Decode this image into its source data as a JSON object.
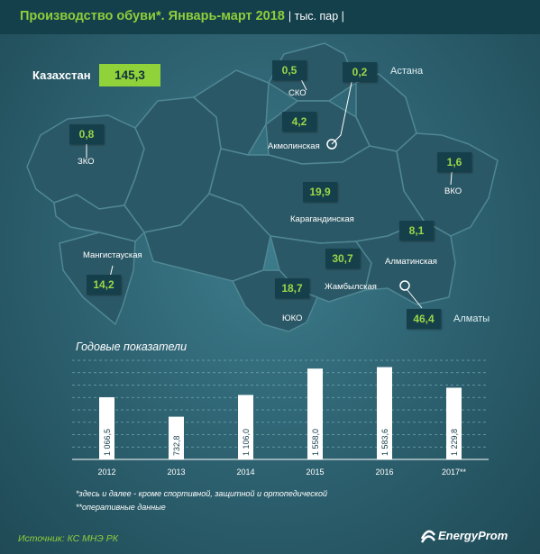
{
  "header": {
    "title": "Производство обуви*. Январь-март 2018",
    "unit": "| тыс. пар |"
  },
  "total": {
    "label": "Казахстан",
    "value": "145,3"
  },
  "map": {
    "regions": [
      {
        "name": "СКО",
        "value": "0,5"
      },
      {
        "name": "Акмолинская",
        "value": "4,2"
      },
      {
        "name": "ЗКО",
        "value": "0,8"
      },
      {
        "name": "ВКО",
        "value": "1,6"
      },
      {
        "name": "Карагандинская",
        "value": "19,9"
      },
      {
        "name": "Алматинская",
        "value": "8,1"
      },
      {
        "name": "Мангистауская",
        "value": "14,2"
      },
      {
        "name": "Жамбылская",
        "value": "30,7"
      },
      {
        "name": "ЮКО",
        "value": "18,7"
      }
    ],
    "cities": [
      {
        "name": "Астана",
        "value": "0,2"
      },
      {
        "name": "Алматы",
        "value": "46,4"
      }
    ],
    "colors": {
      "land": "#2b5866",
      "border": "#4f8795",
      "accent": "#8fd23a",
      "box": "#15404b"
    }
  },
  "chart_data": {
    "type": "bar",
    "title": "Годовые показатели",
    "categories": [
      "2012",
      "2013",
      "2014",
      "2015",
      "2016",
      "2017**"
    ],
    "values": [
      1066.5,
      732.8,
      1106.0,
      1558.0,
      1583.6,
      1229.8
    ],
    "value_labels": [
      "1 066,5",
      "732,8",
      "1 106,0",
      "1 558,0",
      "1 583,6",
      "1 229,8"
    ],
    "ylim": [
      0,
      1700
    ],
    "grid": true,
    "bar_color": "#ffffff"
  },
  "notes": [
    "*здесь и далее - кроме спортивной, защитной и ортопедической",
    "**оперативные данные"
  ],
  "footer": {
    "source": "Источник: КС МНЭ РК",
    "logo": "EnergyProm"
  }
}
